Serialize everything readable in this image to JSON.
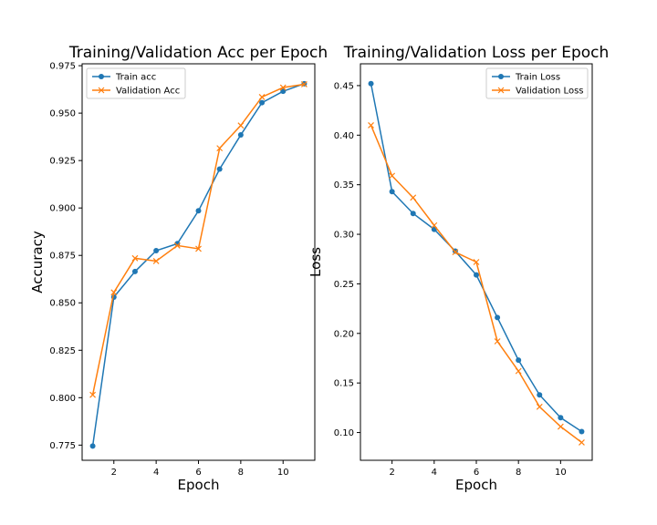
{
  "colors": {
    "train": "#1f77b4",
    "validation": "#ff7f0e",
    "legend_border": "#cccccc"
  },
  "chart_data": [
    {
      "type": "line",
      "title": "Training/Validation Acc per Epoch",
      "xlabel": "Epoch",
      "ylabel": "Accuracy",
      "xlim": [
        0.5,
        11.5
      ],
      "ylim": [
        0.767,
        0.976
      ],
      "xticks": [
        2,
        4,
        6,
        8,
        10
      ],
      "yticks": [
        0.775,
        0.8,
        0.825,
        0.85,
        0.875,
        0.9,
        0.925,
        0.95,
        0.975
      ],
      "ytick_labels": [
        "0.775",
        "0.800",
        "0.825",
        "0.850",
        "0.875",
        "0.900",
        "0.925",
        "0.950",
        "0.975"
      ],
      "grid": false,
      "legend_position": "top-left",
      "x": [
        1,
        2,
        3,
        4,
        5,
        6,
        7,
        8,
        9,
        10,
        11
      ],
      "series": [
        {
          "name": "Train acc",
          "marker": "circle",
          "color_key": "train",
          "values": [
            0.7745,
            0.853,
            0.8665,
            0.8775,
            0.8812,
            0.8985,
            0.9205,
            0.9385,
            0.9555,
            0.9615,
            0.9655
          ]
        },
        {
          "name": "Validation Acc",
          "marker": "x",
          "color_key": "validation",
          "values": [
            0.8015,
            0.8555,
            0.8735,
            0.872,
            0.8802,
            0.8785,
            0.9315,
            0.9435,
            0.9585,
            0.9635,
            0.9652
          ]
        }
      ]
    },
    {
      "type": "line",
      "title": "Training/Validation Loss per Epoch",
      "xlabel": "Epoch",
      "ylabel": "Loss",
      "xlim": [
        0.5,
        11.5
      ],
      "ylim": [
        0.072,
        0.472
      ],
      "xticks": [
        2,
        4,
        6,
        8,
        10
      ],
      "yticks": [
        0.1,
        0.15,
        0.2,
        0.25,
        0.3,
        0.35,
        0.4,
        0.45
      ],
      "ytick_labels": [
        "0.10",
        "0.15",
        "0.20",
        "0.25",
        "0.30",
        "0.35",
        "0.40",
        "0.45"
      ],
      "grid": false,
      "legend_position": "top-right",
      "x": [
        1,
        2,
        3,
        4,
        5,
        6,
        7,
        8,
        9,
        10,
        11
      ],
      "series": [
        {
          "name": "Train Loss",
          "marker": "circle",
          "color_key": "train",
          "values": [
            0.452,
            0.343,
            0.321,
            0.305,
            0.283,
            0.259,
            0.216,
            0.173,
            0.138,
            0.115,
            0.101
          ]
        },
        {
          "name": "Validation Loss",
          "marker": "x",
          "color_key": "validation",
          "values": [
            0.41,
            0.359,
            0.337,
            0.309,
            0.282,
            0.272,
            0.192,
            0.162,
            0.126,
            0.106,
            0.09
          ]
        }
      ]
    }
  ]
}
